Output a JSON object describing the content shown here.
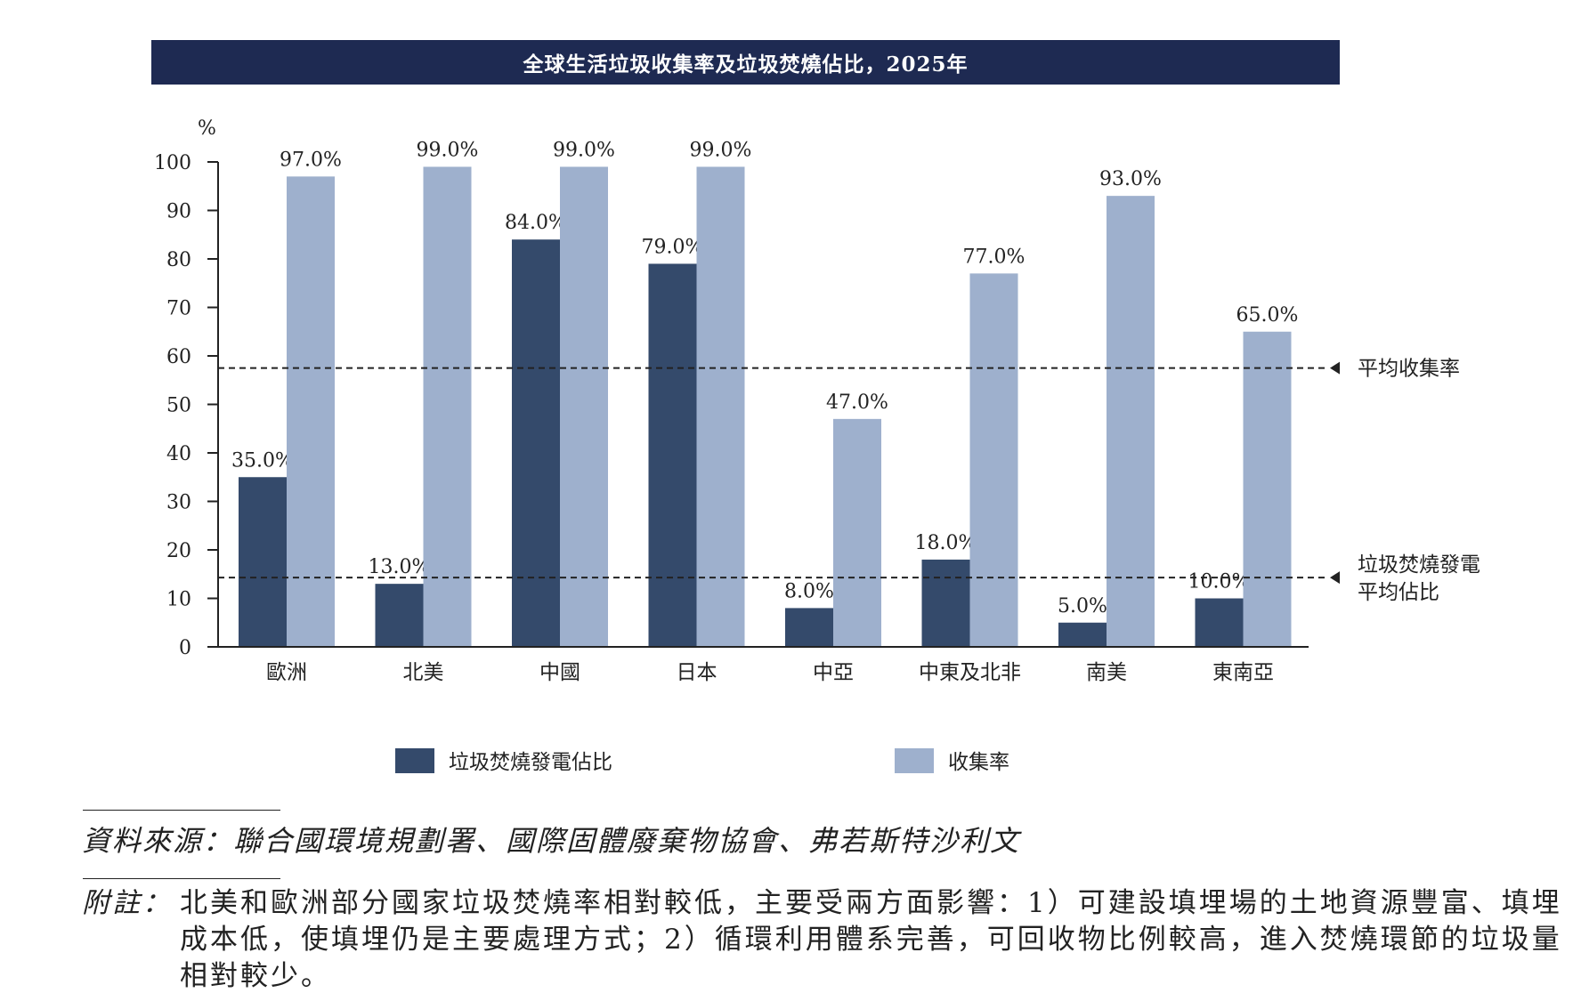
{
  "chart_data": {
    "type": "bar",
    "title": "全球生活垃圾收集率及垃圾焚燒佔比，2025年",
    "ylabel": "%",
    "ylim": [
      0,
      100
    ],
    "yticks": [
      0,
      10,
      20,
      30,
      40,
      50,
      60,
      70,
      80,
      90,
      100
    ],
    "categories": [
      "歐洲",
      "北美",
      "中國",
      "日本",
      "中亞",
      "中東及北非",
      "南美",
      "東南亞"
    ],
    "series": [
      {
        "name": "垃圾焚燒發電佔比",
        "color": "#344a6b",
        "values": [
          35.0,
          13.0,
          84.0,
          79.0,
          8.0,
          18.0,
          5.0,
          10.0
        ],
        "labels": [
          "35.0%",
          "13.0%",
          "84.0%",
          "79.0%",
          "8.0%",
          "18.0%",
          "5.0%",
          "10.0%"
        ]
      },
      {
        "name": "收集率",
        "color": "#9eb0cd",
        "values": [
          97.0,
          99.0,
          99.0,
          99.0,
          47.0,
          77.0,
          93.0,
          65.0
        ],
        "labels": [
          "97.0%",
          "99.0%",
          "99.0%",
          "99.0%",
          "47.0%",
          "77.0%",
          "93.0%",
          "65.0%"
        ]
      }
    ],
    "reference_lines": [
      {
        "label": "平均收集率",
        "value": 57.5
      },
      {
        "label_lines": [
          "垃圾焚燒發電",
          "平均佔比"
        ],
        "value": 14.3
      }
    ],
    "legend_position": "bottom",
    "grid": false
  },
  "source": "資料來源：聯合國環境規劃署、國際固體廢棄物協會、弗若斯特沙利文",
  "note": {
    "label": "附註：",
    "text": "北美和歐洲部分國家垃圾焚燒率相對較低，主要受兩方面影響：1）可建設填埋場的土地資源豐富、填埋成本低，使填埋仍是主要處理方式；2）循環利用體系完善，可回收物比例較高，進入焚燒環節的垃圾量相對較少。"
  }
}
